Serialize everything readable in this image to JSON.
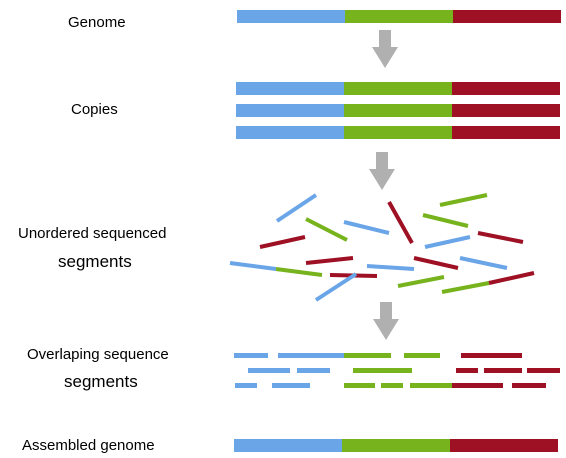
{
  "labels": {
    "genome": "Genome",
    "copies": "Copies",
    "unordered_line1": "Unordered sequenced",
    "unordered_line2": "segments",
    "overlapping_line1": "Overlaping sequence",
    "overlapping_line2": "segments",
    "assembled": "Assembled genome"
  },
  "colors": {
    "blue": "#6aa5e8",
    "green": "#77b31c",
    "red": "#9e1024",
    "arrow": "#b0b0b0"
  }
}
